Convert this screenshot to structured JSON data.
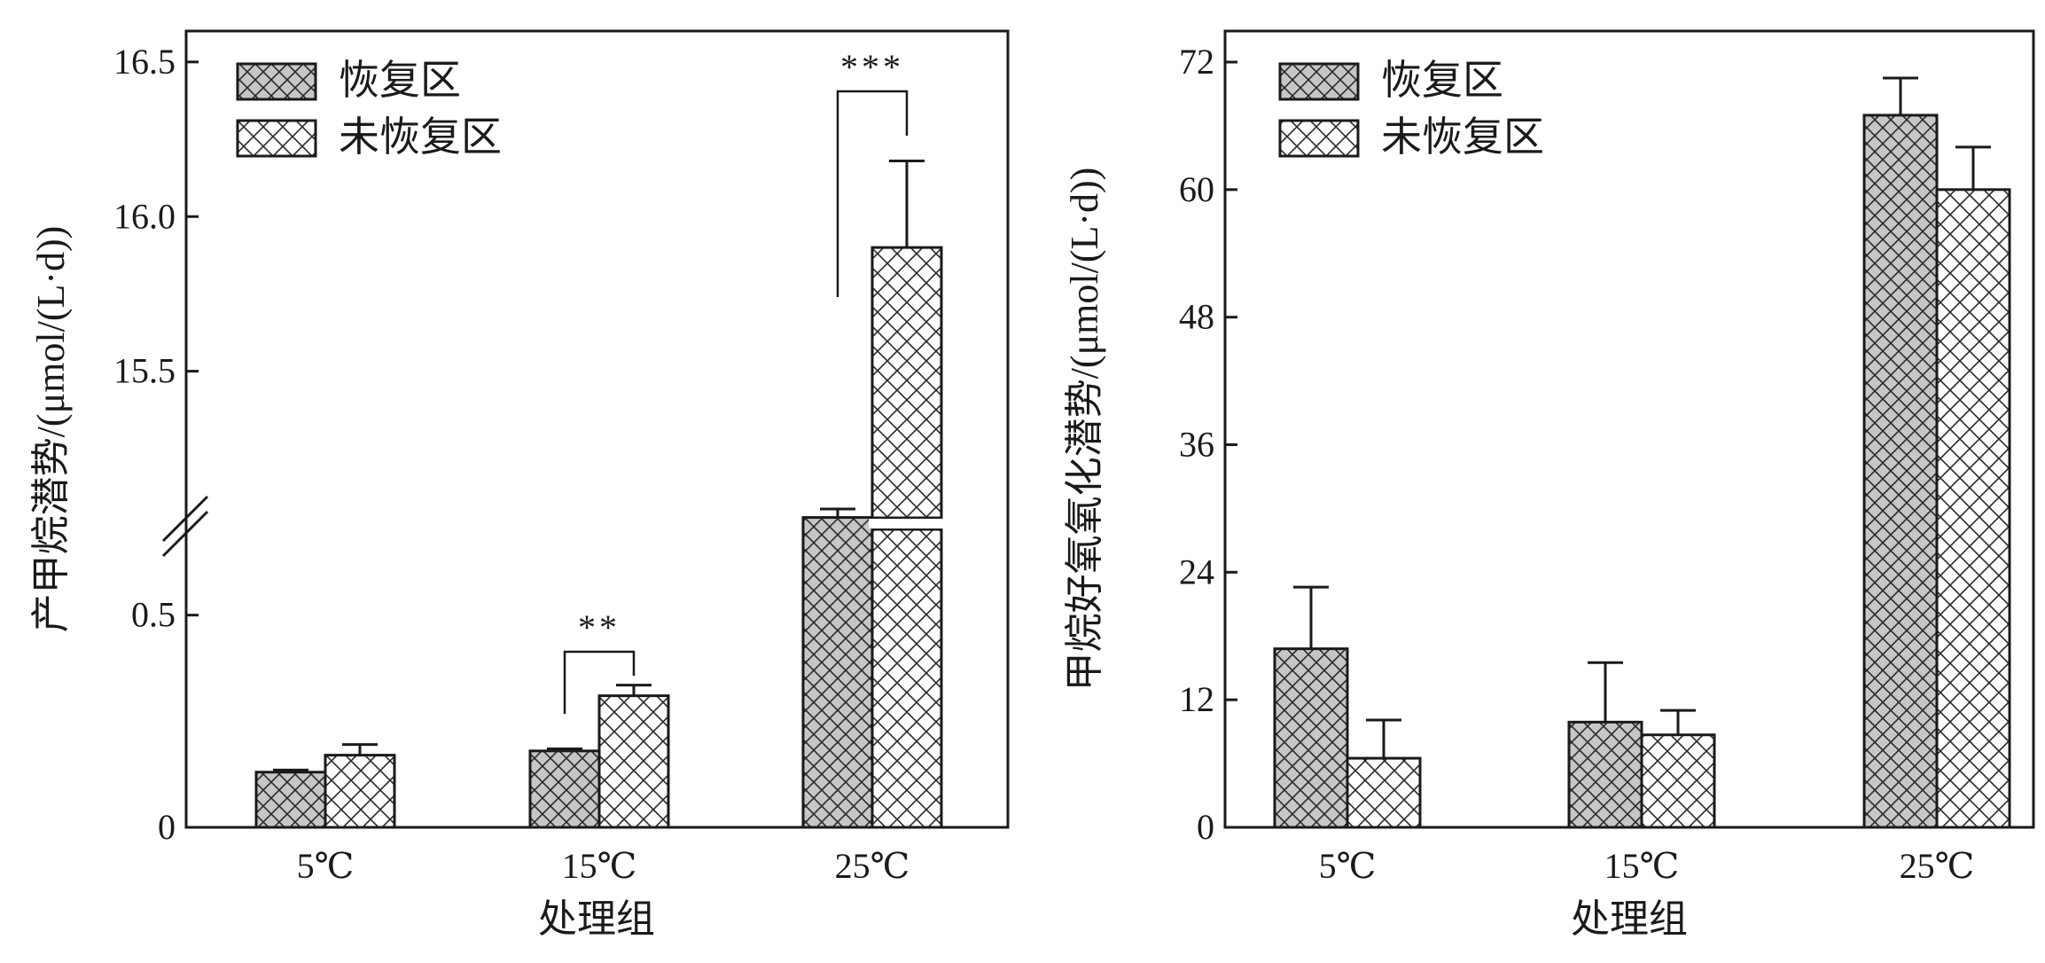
{
  "chart_data": [
    {
      "type": "bar",
      "ylabel": "产甲烷潜势/(μmol/(L·d))",
      "xlabel": "处理组",
      "categories": [
        "5℃",
        "15℃",
        "25℃"
      ],
      "axis_break": {
        "lower_range": [
          0,
          0.75
        ],
        "upper_range": [
          15.0,
          16.6
        ]
      },
      "yticks_lower": [
        {
          "value": 0,
          "label": "0"
        },
        {
          "value": 0.5,
          "label": "0.5"
        }
      ],
      "yticks_upper": [
        {
          "value": 15.5,
          "label": "15.5"
        },
        {
          "value": 16.0,
          "label": "16.0"
        },
        {
          "value": 16.5,
          "label": "16.5"
        }
      ],
      "series": [
        {
          "name": "恢复区",
          "values": [
            0.13,
            0.18,
            0.73
          ],
          "errors": [
            0.005,
            0.005,
            0.02
          ],
          "pattern": "gray-crosshatch"
        },
        {
          "name": "未恢复区",
          "values": [
            0.17,
            0.31,
            15.9
          ],
          "errors": [
            0.025,
            0.025,
            0.28
          ],
          "pattern": "white-crosshatch"
        }
      ],
      "significance": [
        {
          "category": "15℃",
          "label": "**"
        },
        {
          "category": "25℃",
          "label": "***"
        }
      ],
      "legend_position": "top-left"
    },
    {
      "type": "bar",
      "ylabel": "甲烷好氧氧化潜势/(μmol/(L·d))",
      "xlabel": "处理组",
      "categories": [
        "5℃",
        "15℃",
        "25℃"
      ],
      "ylim": [
        0,
        75
      ],
      "yticks": [
        {
          "value": 0,
          "label": "0"
        },
        {
          "value": 12,
          "label": "12"
        },
        {
          "value": 24,
          "label": "24"
        },
        {
          "value": 36,
          "label": "36"
        },
        {
          "value": 48,
          "label": "48"
        },
        {
          "value": 60,
          "label": "60"
        },
        {
          "value": 72,
          "label": "72"
        }
      ],
      "series": [
        {
          "name": "恢复区",
          "values": [
            16.8,
            9.9,
            67.0
          ],
          "errors": [
            5.8,
            5.6,
            3.5
          ],
          "pattern": "gray-crosshatch"
        },
        {
          "name": "未恢复区",
          "values": [
            6.5,
            8.7,
            60.0
          ],
          "errors": [
            3.6,
            2.3,
            4.0
          ],
          "pattern": "white-crosshatch"
        }
      ],
      "legend_position": "top-left"
    }
  ]
}
